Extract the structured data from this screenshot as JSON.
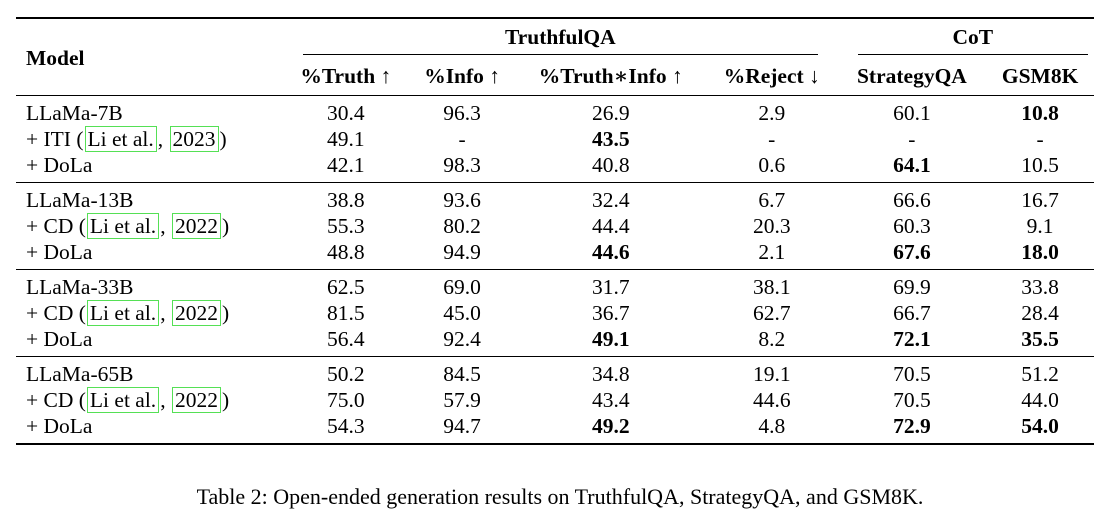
{
  "table": {
    "header_model": "Model",
    "group_truthfulqa": "TruthfulQA",
    "group_cot": "CoT",
    "columns": [
      "%Truth ↑",
      "%Info ↑",
      "%Truth∗Info ↑",
      "%Reject ↓",
      "StrategyQA",
      "GSM8K"
    ],
    "groups": [
      {
        "rows": [
          {
            "model": "LLaMa-7B",
            "cite": null,
            "values": [
              "30.4",
              "96.3",
              "26.9",
              "2.9",
              "60.1",
              "10.8"
            ],
            "bold": [
              false,
              false,
              false,
              false,
              false,
              true
            ]
          },
          {
            "model": "+ ITI",
            "cite": {
              "author": "Li et al.",
              "year": "2023"
            },
            "values": [
              "49.1",
              "-",
              "43.5",
              "-",
              "-",
              "-"
            ],
            "bold": [
              false,
              false,
              true,
              false,
              false,
              false
            ]
          },
          {
            "model": "+ DoLa",
            "cite": null,
            "values": [
              "42.1",
              "98.3",
              "40.8",
              "0.6",
              "64.1",
              "10.5"
            ],
            "bold": [
              false,
              false,
              false,
              false,
              true,
              false
            ]
          }
        ]
      },
      {
        "rows": [
          {
            "model": "LLaMa-13B",
            "cite": null,
            "values": [
              "38.8",
              "93.6",
              "32.4",
              "6.7",
              "66.6",
              "16.7"
            ],
            "bold": [
              false,
              false,
              false,
              false,
              false,
              false
            ]
          },
          {
            "model": "+ CD",
            "cite": {
              "author": "Li et al.",
              "year": "2022"
            },
            "values": [
              "55.3",
              "80.2",
              "44.4",
              "20.3",
              "60.3",
              "9.1"
            ],
            "bold": [
              false,
              false,
              false,
              false,
              false,
              false
            ]
          },
          {
            "model": "+ DoLa",
            "cite": null,
            "values": [
              "48.8",
              "94.9",
              "44.6",
              "2.1",
              "67.6",
              "18.0"
            ],
            "bold": [
              false,
              false,
              true,
              false,
              true,
              true
            ]
          }
        ]
      },
      {
        "rows": [
          {
            "model": "LLaMa-33B",
            "cite": null,
            "values": [
              "62.5",
              "69.0",
              "31.7",
              "38.1",
              "69.9",
              "33.8"
            ],
            "bold": [
              false,
              false,
              false,
              false,
              false,
              false
            ]
          },
          {
            "model": "+ CD",
            "cite": {
              "author": "Li et al.",
              "year": "2022"
            },
            "values": [
              "81.5",
              "45.0",
              "36.7",
              "62.7",
              "66.7",
              "28.4"
            ],
            "bold": [
              false,
              false,
              false,
              false,
              false,
              false
            ]
          },
          {
            "model": "+ DoLa",
            "cite": null,
            "values": [
              "56.4",
              "92.4",
              "49.1",
              "8.2",
              "72.1",
              "35.5"
            ],
            "bold": [
              false,
              false,
              true,
              false,
              true,
              true
            ]
          }
        ]
      },
      {
        "rows": [
          {
            "model": "LLaMa-65B",
            "cite": null,
            "values": [
              "50.2",
              "84.5",
              "34.8",
              "19.1",
              "70.5",
              "51.2"
            ],
            "bold": [
              false,
              false,
              false,
              false,
              false,
              false
            ]
          },
          {
            "model": "+ CD",
            "cite": {
              "author": "Li et al.",
              "year": "2022"
            },
            "values": [
              "75.0",
              "57.9",
              "43.4",
              "44.6",
              "70.5",
              "44.0"
            ],
            "bold": [
              false,
              false,
              false,
              false,
              false,
              false
            ]
          },
          {
            "model": "+ DoLa",
            "cite": null,
            "values": [
              "54.3",
              "94.7",
              "49.2",
              "4.8",
              "72.9",
              "54.0"
            ],
            "bold": [
              false,
              false,
              true,
              false,
              true,
              true
            ]
          }
        ]
      }
    ]
  },
  "caption": "Table 2: Open-ended generation results on TruthfulQA, StrategyQA, and GSM8K.",
  "colors": {
    "citation_border": "#55e055",
    "text": "#000000"
  }
}
